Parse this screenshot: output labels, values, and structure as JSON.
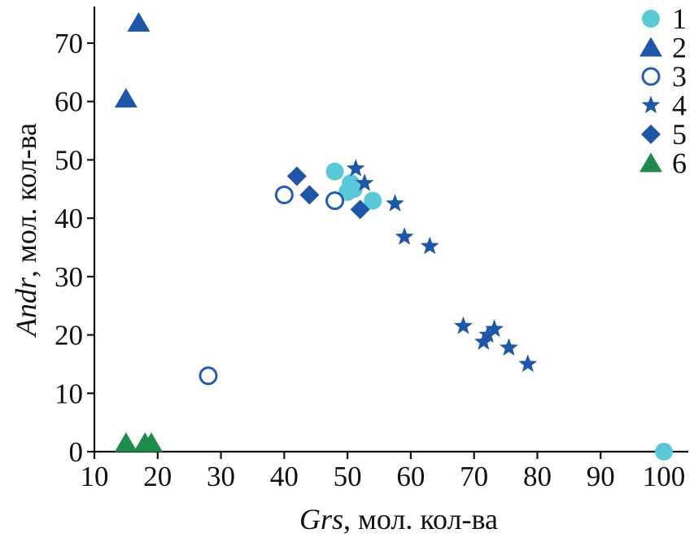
{
  "chart_data": {
    "type": "scatter",
    "xlabel_italic": "Grs",
    "xlabel_rest": ", мол. кол-ва",
    "ylabel_italic": "Andr",
    "ylabel_rest": ", мол. кол-ва",
    "xlim": [
      10,
      102
    ],
    "ylim": [
      0,
      76
    ],
    "xticks": [
      10,
      20,
      30,
      40,
      50,
      60,
      70,
      80,
      90,
      100
    ],
    "yticks": [
      0,
      10,
      20,
      30,
      40,
      50,
      60,
      70
    ],
    "grid": false,
    "legend_position": "top-right",
    "series": [
      {
        "name": "1",
        "marker": "circle-filled",
        "color": "#5bc8d8",
        "points": [
          [
            48,
            48
          ],
          [
            50,
            44.5
          ],
          [
            50.5,
            46
          ],
          [
            51,
            45
          ],
          [
            54,
            43
          ],
          [
            100,
            0
          ]
        ]
      },
      {
        "name": "2",
        "marker": "triangle",
        "color": "#1f56a8",
        "points": [
          [
            17,
            73.5
          ],
          [
            15,
            60.5
          ]
        ]
      },
      {
        "name": "3",
        "marker": "circle-open",
        "color": "#1f5fb0",
        "points": [
          [
            40,
            44
          ],
          [
            48,
            43
          ],
          [
            28,
            13
          ]
        ]
      },
      {
        "name": "4",
        "marker": "star",
        "color": "#1f56a8",
        "points": [
          [
            51.3,
            48.5
          ],
          [
            52.7,
            46
          ],
          [
            57.5,
            42.5
          ],
          [
            59,
            36.8
          ],
          [
            63,
            35.2
          ],
          [
            68.3,
            21.5
          ],
          [
            71.5,
            18.8
          ],
          [
            72.2,
            20
          ],
          [
            73.2,
            21
          ],
          [
            75.5,
            17.8
          ],
          [
            78.5,
            15
          ]
        ]
      },
      {
        "name": "5",
        "marker": "diamond",
        "color": "#1f56a8",
        "points": [
          [
            42,
            47.2
          ],
          [
            44,
            44
          ],
          [
            52,
            41.5
          ]
        ]
      },
      {
        "name": "6",
        "marker": "triangle",
        "color": "#1e8a4c",
        "points": [
          [
            15,
            1.5
          ],
          [
            18,
            1.5
          ],
          [
            19,
            1.5
          ]
        ]
      }
    ]
  }
}
